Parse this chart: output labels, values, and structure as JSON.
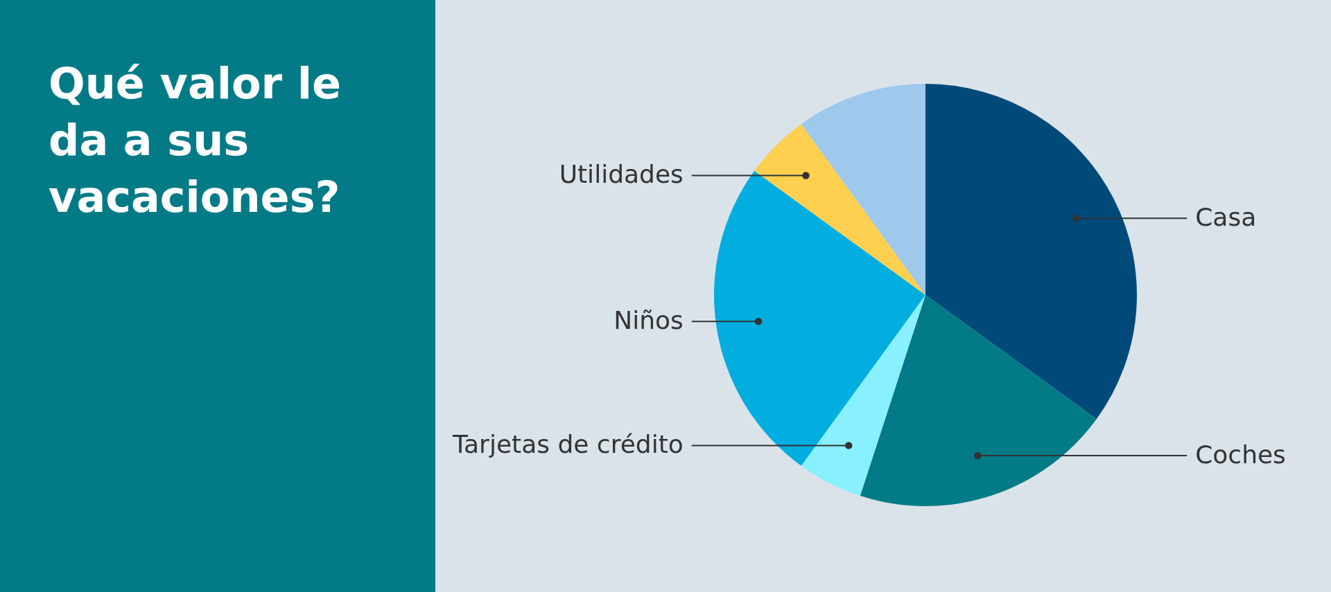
{
  "chart_data": {
    "type": "pie",
    "title": "Qué valor le da a sus vacaciones?",
    "categories": [
      "Casa",
      "Coches",
      "Tarjetas de crédito",
      "Niños",
      "Utilidades",
      null
    ],
    "values": [
      35,
      20,
      5,
      25,
      5,
      10
    ],
    "colors": [
      "#004a7a",
      "#027b87",
      "#88f0ff",
      "#02aee0",
      "#ffd04f",
      "#9ec8ec"
    ]
  }
}
